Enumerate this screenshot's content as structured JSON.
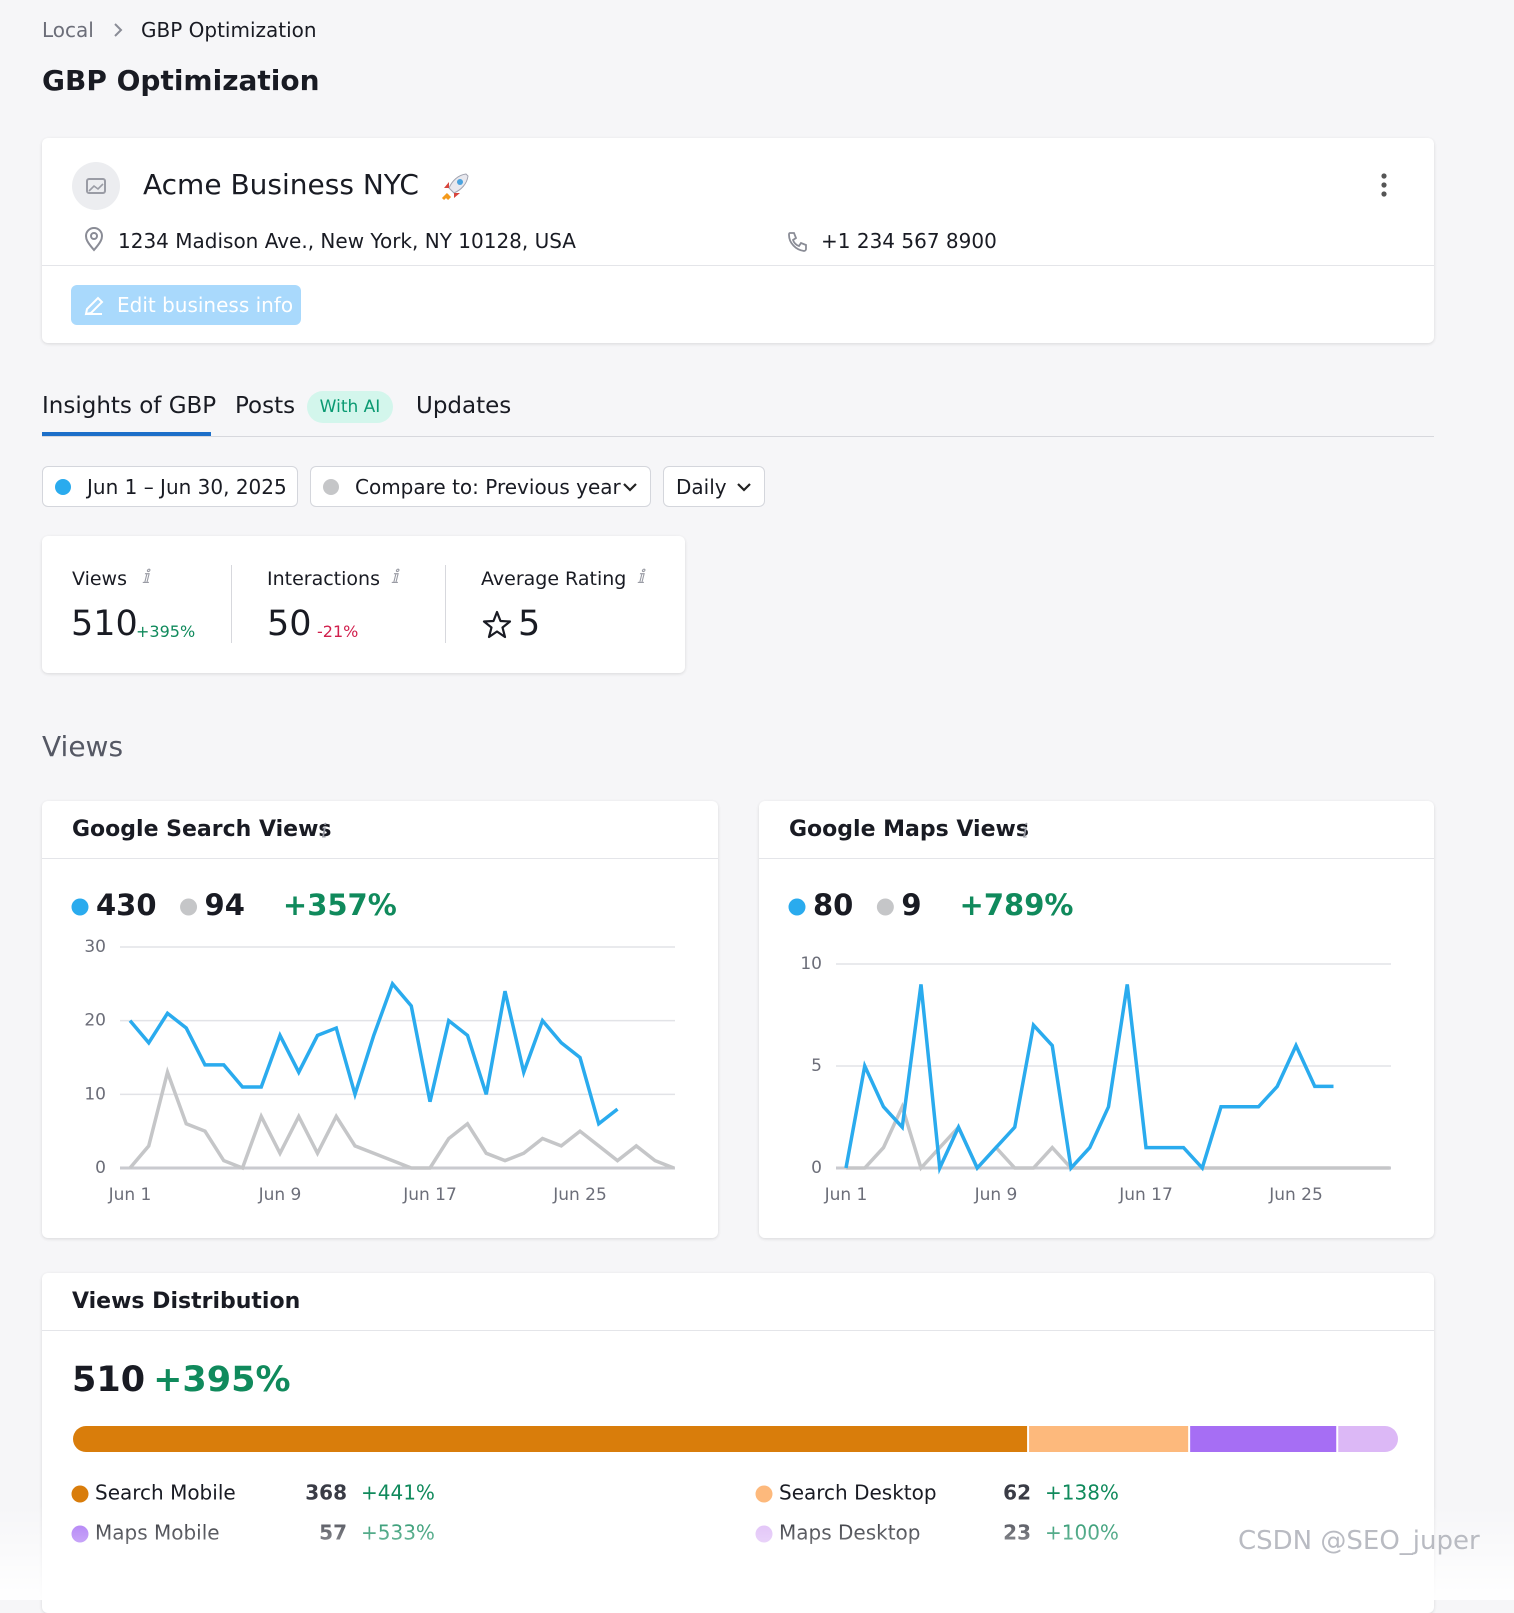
{
  "breadcrumb": [
    "Local",
    "GBP Optimization"
  ],
  "title": "GBP Optimization",
  "business": {
    "name": "Acme Business NYC",
    "address": "1234 Madison Ave., New York, NY 10128, USA",
    "phone": "+1 234 567 8900",
    "edit_button": "Edit business info"
  },
  "tabs": [
    {
      "label": "Insights of GBP"
    },
    {
      "label": "Posts",
      "badge": "With AI"
    },
    {
      "label": "Updates"
    }
  ],
  "filters": {
    "date_range": "Jun 1 – Jun 30, 2025",
    "compare": "Compare to: Previous year",
    "granularity": "Daily"
  },
  "kpis": [
    {
      "label": "Views",
      "value": 510,
      "change": "+395%"
    },
    {
      "label": "Interactions",
      "value": 50,
      "change": "-21%"
    },
    {
      "label": "Average Rating",
      "value": 5
    }
  ],
  "section_title": "Views",
  "watermark": "CSDN @SEO_juper",
  "chart_data": [
    {
      "type": "line",
      "title": "Google Search Views",
      "change": "+357%",
      "categories": [
        "Jun 1",
        null,
        null,
        null,
        null,
        null,
        null,
        null,
        "Jun 9",
        null,
        null,
        null,
        null,
        null,
        null,
        null,
        "Jun 17",
        null,
        null,
        null,
        null,
        null,
        null,
        null,
        "Jun 25",
        null,
        null,
        null,
        null,
        null
      ],
      "ylim": [
        0,
        30
      ],
      "yticks": [
        0,
        10,
        20,
        30
      ],
      "grid": true,
      "series": [
        {
          "color": "#2aabee",
          "total": 430,
          "values": [
            20,
            17,
            21,
            19,
            14,
            14,
            11,
            11,
            18,
            13,
            18,
            19,
            10,
            18,
            25,
            22,
            9,
            20,
            18,
            10,
            24,
            13,
            20,
            17,
            15,
            6,
            8,
            null,
            null,
            null
          ]
        },
        {
          "color": "#c5c6c8",
          "total": 94,
          "values": [
            0,
            3,
            13,
            6,
            5,
            1,
            0,
            7,
            2,
            7,
            2,
            7,
            3,
            2,
            1,
            0,
            0,
            4,
            6,
            2,
            1,
            2,
            4,
            3,
            5,
            3,
            1,
            3,
            1,
            0
          ]
        }
      ]
    },
    {
      "type": "line",
      "title": "Google Maps Views",
      "change": "+789%",
      "categories": [
        "Jun 1",
        null,
        null,
        null,
        null,
        null,
        null,
        null,
        "Jun 9",
        null,
        null,
        null,
        null,
        null,
        null,
        null,
        "Jun 17",
        null,
        null,
        null,
        null,
        null,
        null,
        null,
        "Jun 25",
        null,
        null,
        null,
        null,
        null
      ],
      "ylim": [
        0,
        10
      ],
      "yticks": [
        0,
        5,
        10
      ],
      "grid": true,
      "series": [
        {
          "color": "#2aabee",
          "total": 80,
          "values": [
            0,
            5,
            3,
            2,
            9,
            0,
            2,
            0,
            1,
            2,
            7,
            6,
            0,
            1,
            3,
            9,
            1,
            1,
            1,
            0,
            3,
            3,
            3,
            4,
            6,
            4,
            4,
            null,
            null,
            null
          ]
        },
        {
          "color": "#c5c6c8",
          "total": 9,
          "values": [
            0,
            0,
            1,
            3,
            0,
            1,
            2,
            0,
            1,
            0,
            0,
            1,
            0,
            0,
            0,
            0,
            0,
            0,
            0,
            0,
            0,
            0,
            0,
            0,
            0,
            0,
            0,
            0,
            0,
            0
          ]
        }
      ]
    },
    {
      "type": "stacked_bar",
      "title": "Views Distribution",
      "total": 510,
      "change": "+395%",
      "series": [
        {
          "name": "Search Mobile",
          "color": "#d97d0b",
          "values": [
            368
          ],
          "change": "+441%"
        },
        {
          "name": "Search Desktop",
          "color": "#fdb97c",
          "values": [
            62
          ],
          "change": "+138%"
        },
        {
          "name": "Maps Mobile",
          "color": "#a66ef4",
          "values": [
            57
          ],
          "change": "+533%"
        },
        {
          "name": "Maps Desktop",
          "color": "#dcb8f6",
          "values": [
            23
          ],
          "change": "+100%"
        }
      ]
    }
  ]
}
